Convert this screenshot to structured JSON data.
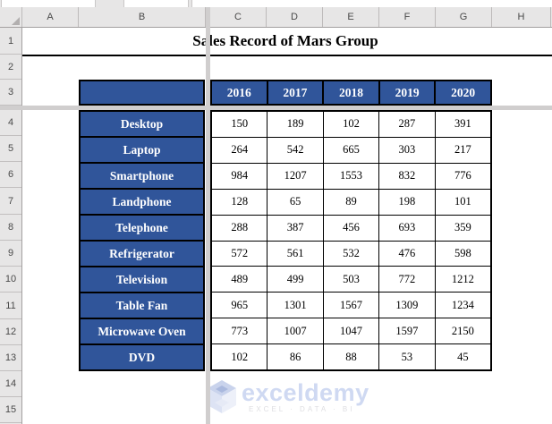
{
  "window": {
    "name_box_value": "",
    "formula_bar_value": ""
  },
  "sheet": {
    "column_headers": [
      "A",
      "B",
      "C",
      "D",
      "E",
      "F",
      "G",
      "H"
    ],
    "row_headers": [
      "1",
      "2",
      "3",
      "4",
      "5",
      "6",
      "7",
      "8",
      "9",
      "10",
      "11",
      "12",
      "13",
      "14",
      "15"
    ]
  },
  "title": "Sales Record of Mars Group",
  "table": {
    "years": [
      "2016",
      "2017",
      "2018",
      "2019",
      "2020"
    ],
    "rows": [
      {
        "product": "Desktop",
        "values": [
          "150",
          "189",
          "102",
          "287",
          "391"
        ]
      },
      {
        "product": "Laptop",
        "values": [
          "264",
          "542",
          "665",
          "303",
          "217"
        ]
      },
      {
        "product": "Smartphone",
        "values": [
          "984",
          "1207",
          "1553",
          "832",
          "776"
        ]
      },
      {
        "product": "Landphone",
        "values": [
          "128",
          "65",
          "89",
          "198",
          "101"
        ]
      },
      {
        "product": "Telephone",
        "values": [
          "288",
          "387",
          "456",
          "693",
          "359"
        ]
      },
      {
        "product": "Refrigerator",
        "values": [
          "572",
          "561",
          "532",
          "476",
          "598"
        ]
      },
      {
        "product": "Television",
        "values": [
          "489",
          "499",
          "503",
          "772",
          "1212"
        ]
      },
      {
        "product": "Table Fan",
        "values": [
          "965",
          "1301",
          "1567",
          "1309",
          "1234"
        ]
      },
      {
        "product": "Microwave Oven",
        "values": [
          "773",
          "1007",
          "1047",
          "1597",
          "2150"
        ]
      },
      {
        "product": "DVD",
        "values": [
          "102",
          "86",
          "88",
          "53",
          "45"
        ]
      }
    ]
  },
  "watermark": {
    "brand": "exceldemy",
    "tagline": "EXCEL · DATA · BI"
  },
  "colors": {
    "table_header_blue": "#30559A",
    "table_text_white": "#FFFFFF",
    "border_black": "#000000",
    "header_gray": "#E7E6E6",
    "freeze_bar_gray": "#D0CECE",
    "watermark_blue": "#CFD9F2"
  }
}
